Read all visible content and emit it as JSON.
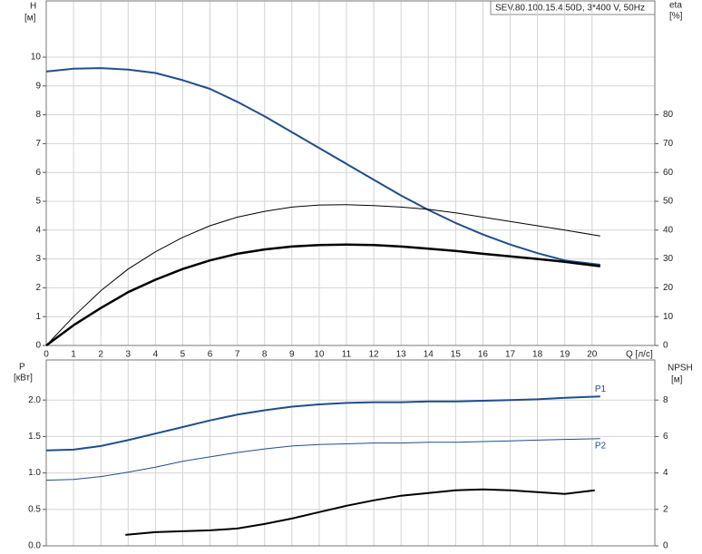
{
  "chart_data": [
    {
      "type": "line",
      "title": "SEV.80.100.15.4.50D, 3*400 V, 50Hz",
      "y_label": "H",
      "y_unit": "[м]",
      "y2_label": "eta",
      "y2_unit": "[%]",
      "x_label": "Q [л/с]",
      "xlim": [
        0,
        22.3
      ],
      "xticks": [
        0,
        1,
        2,
        3,
        4,
        5,
        6,
        7,
        8,
        9,
        10,
        11,
        12,
        13,
        14,
        15,
        16,
        17,
        18,
        19,
        20
      ],
      "ylim": [
        0,
        11.95
      ],
      "yticks": [
        0,
        1,
        2,
        3,
        4,
        5,
        6,
        7,
        8,
        9,
        10
      ],
      "y2lim": [
        0,
        119.5
      ],
      "y2ticks": [
        0,
        10,
        20,
        30,
        40,
        50,
        60,
        70,
        80
      ],
      "grid": true,
      "series": [
        {
          "color": "#1f4e8c",
          "width": 2,
          "x": [
            0,
            1,
            2,
            3,
            4,
            5,
            6,
            7,
            8,
            9,
            10,
            11,
            12,
            13,
            14,
            15,
            16,
            17,
            18,
            19,
            20.3
          ],
          "values": [
            9.5,
            9.6,
            9.62,
            9.57,
            9.45,
            9.2,
            8.9,
            8.45,
            7.95,
            7.4,
            6.85,
            6.3,
            5.75,
            5.2,
            4.7,
            4.25,
            3.85,
            3.5,
            3.2,
            2.95,
            2.8
          ]
        },
        {
          "color": "#000000",
          "width": 1,
          "axis": "y2",
          "x": [
            0,
            1,
            2,
            3,
            4,
            5,
            6,
            7,
            8,
            9,
            10,
            11,
            12,
            13,
            14,
            15,
            16,
            17,
            18,
            19,
            20.3
          ],
          "values": [
            0,
            10,
            19,
            26.5,
            32.5,
            37.5,
            41.5,
            44.5,
            46.5,
            48,
            48.7,
            48.8,
            48.5,
            48,
            47.2,
            46,
            44.5,
            43,
            41.5,
            40,
            38
          ]
        },
        {
          "color": "#000000",
          "width": 2.5,
          "axis": "y2",
          "x": [
            0,
            1,
            2,
            3,
            4,
            5,
            6,
            7,
            8,
            9,
            10,
            11,
            12,
            13,
            14,
            15,
            16,
            17,
            18,
            19,
            20.3
          ],
          "values": [
            0,
            7,
            13,
            18.5,
            22.8,
            26.5,
            29.5,
            31.8,
            33.3,
            34.3,
            34.8,
            35,
            34.8,
            34.3,
            33.6,
            32.8,
            31.8,
            30.9,
            30,
            29,
            27.5
          ]
        }
      ]
    },
    {
      "type": "line",
      "y_label": "P",
      "y_unit": "[кВт]",
      "y2_label": "NPSH",
      "y2_unit": "[м]",
      "xlim": [
        0,
        22.3
      ],
      "ylim": [
        0,
        2.55
      ],
      "yticks": [
        {
          "value": 0,
          "label": "0.0"
        },
        0.5,
        {
          "value": 1,
          "label": "1.0"
        },
        1.5,
        {
          "value": 2,
          "label": "2.0"
        }
      ],
      "y2lim": [
        0,
        10.2
      ],
      "y2ticks": [
        0,
        2,
        4,
        6,
        8
      ],
      "grid": true,
      "series": [
        {
          "name": "P1",
          "color": "#1f4e8c",
          "width": 2,
          "x": [
            0,
            1,
            2,
            3,
            4,
            5,
            6,
            7,
            8,
            9,
            10,
            11,
            12,
            13,
            14,
            15,
            16,
            17,
            18,
            19,
            20.3
          ],
          "values": [
            1.31,
            1.32,
            1.37,
            1.45,
            1.54,
            1.63,
            1.72,
            1.8,
            1.86,
            1.91,
            1.94,
            1.96,
            1.97,
            1.97,
            1.98,
            1.98,
            1.99,
            2.0,
            2.01,
            2.03,
            2.05
          ]
        },
        {
          "name": "P2",
          "color": "#1f4e8c",
          "width": 1,
          "x": [
            0,
            1,
            2,
            3,
            4,
            5,
            6,
            7,
            8,
            9,
            10,
            11,
            12,
            13,
            14,
            15,
            16,
            17,
            18,
            19,
            20.3
          ],
          "values": [
            0.9,
            0.91,
            0.95,
            1.01,
            1.08,
            1.16,
            1.22,
            1.28,
            1.33,
            1.37,
            1.39,
            1.4,
            1.41,
            1.41,
            1.42,
            1.42,
            1.43,
            1.44,
            1.45,
            1.46,
            1.47
          ]
        },
        {
          "color": "#000000",
          "width": 2,
          "axis": "y2",
          "x": [
            2.9,
            4,
            5,
            6,
            7,
            8,
            9,
            10,
            11,
            12,
            13,
            14,
            15,
            16,
            17,
            18,
            19,
            20.1
          ],
          "values": [
            0.6,
            0.75,
            0.8,
            0.85,
            0.95,
            1.2,
            1.5,
            1.85,
            2.2,
            2.5,
            2.75,
            2.9,
            3.05,
            3.1,
            3.05,
            2.95,
            2.85,
            3.05
          ]
        }
      ]
    }
  ]
}
